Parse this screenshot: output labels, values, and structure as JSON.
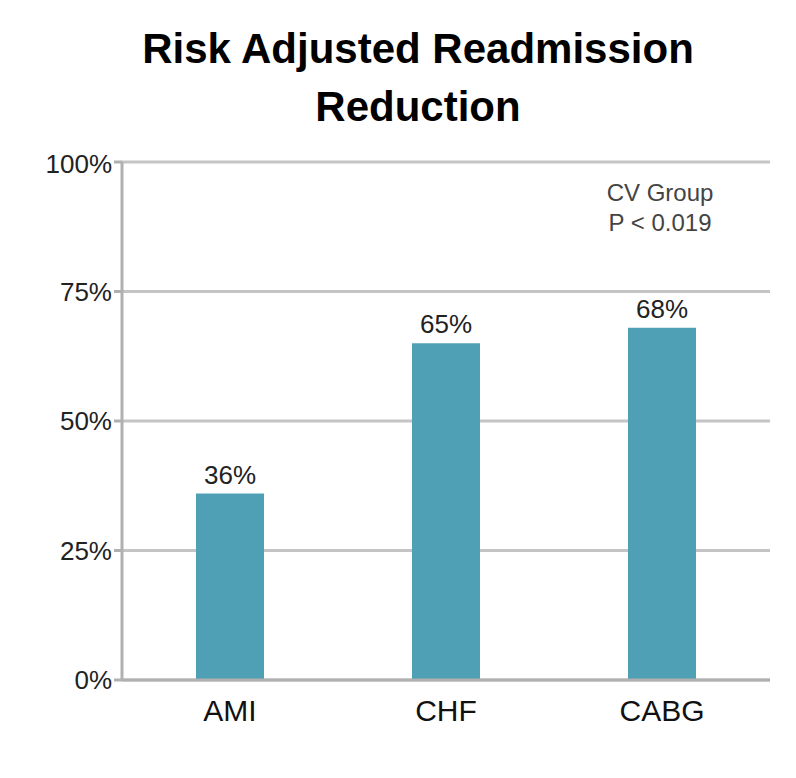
{
  "chart_data": {
    "type": "bar",
    "title": "Risk Adjusted Readmission Reduction",
    "annotations": [
      "CV Group",
      "P < 0.019"
    ],
    "categories": [
      "AMI",
      "CHF",
      "CABG"
    ],
    "values": [
      36,
      65,
      68
    ],
    "value_labels": [
      "36%",
      "65%",
      "68%"
    ],
    "data_labels": true,
    "color": "#4f9fb5",
    "ylim": [
      0,
      100
    ],
    "yticks": [
      {
        "value": 0,
        "label": "0%"
      },
      {
        "value": 25,
        "label": "25%"
      },
      {
        "value": 50,
        "label": "50%"
      },
      {
        "value": 75,
        "label": "75%"
      },
      {
        "value": 100,
        "label": "100%"
      }
    ],
    "grid": true
  }
}
